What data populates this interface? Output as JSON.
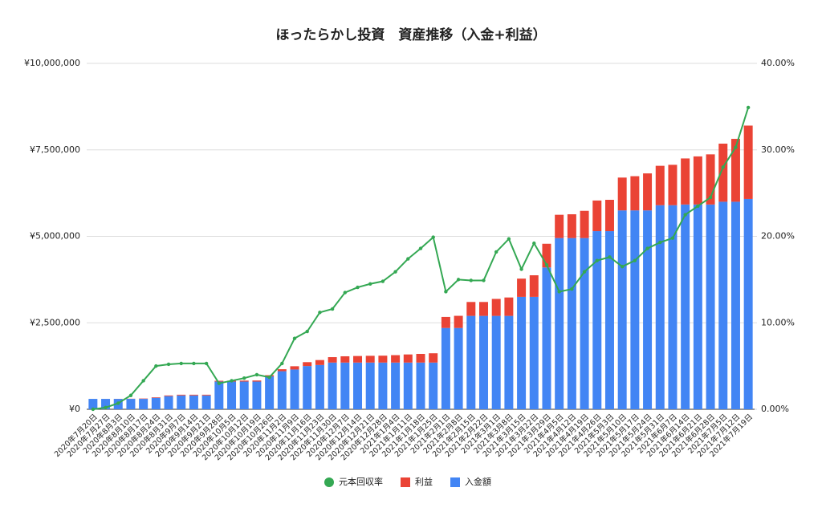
{
  "chart_data": {
    "type": "bar",
    "stacked": true,
    "title": "ほったらかし投資　資産推移（入金+利益）",
    "categories": [
      "2020年7月20日",
      "2020年7月27日",
      "2020年8月3日",
      "2020年8月10日",
      "2020年8月17日",
      "2020年8月24日",
      "2020年8月31日",
      "2020年9月7日",
      "2020年9月14日",
      "2020年9月21日",
      "2020年9月28日",
      "2020年10月5日",
      "2020年10月12日",
      "2020年10月19日",
      "2020年10月26日",
      "2020年11月2日",
      "2020年11月9日",
      "2020年11月16日",
      "2020年11月23日",
      "2020年11月30日",
      "2020年12月7日",
      "2020年12月14日",
      "2020年12月21日",
      "2020年12月28日",
      "2021年1月4日",
      "2021年1月11日",
      "2021年1月18日",
      "2021年1月25日",
      "2021年2月1日",
      "2021年2月8日",
      "2021年2月15日",
      "2021年2月22日",
      "2021年3月1日",
      "2021年3月8日",
      "2021年3月15日",
      "2021年3月22日",
      "2021年3月29日",
      "2021年4月5日",
      "2021年4月12日",
      "2021年4月19日",
      "2021年4月26日",
      "2021年5月3日",
      "2021年5月10日",
      "2021年5月17日",
      "2021年5月24日",
      "2021年5月31日",
      "2021年6月7日",
      "2021年6月14日",
      "2021年6月21日",
      "2021年6月28日",
      "2021年7月5日",
      "2021年7月12日",
      "2021年7月19日"
    ],
    "series": [
      {
        "name": "入金額",
        "color": "#4285f4",
        "values": [
          300000,
          300000,
          300000,
          300000,
          300000,
          330000,
          380000,
          400000,
          400000,
          400000,
          800000,
          800000,
          800000,
          800000,
          950000,
          1100000,
          1150000,
          1250000,
          1280000,
          1350000,
          1350000,
          1350000,
          1350000,
          1350000,
          1350000,
          1350000,
          1350000,
          1350000,
          2350000,
          2350000,
          2700000,
          2700000,
          2700000,
          2700000,
          3250000,
          3250000,
          4100000,
          4950000,
          4950000,
          4950000,
          5150000,
          5150000,
          5750000,
          5750000,
          5750000,
          5900000,
          5900000,
          5920000,
          5920000,
          5920000,
          6000000,
          6000000,
          6080000
        ]
      },
      {
        "name": "利益",
        "color": "#ea4335",
        "values": [
          0,
          600,
          2000,
          5000,
          10000,
          16500,
          20000,
          21000,
          21000,
          21000,
          24000,
          26000,
          29000,
          32000,
          35000,
          58000,
          94000,
          112000,
          143000,
          157000,
          182000,
          190000,
          196000,
          200000,
          215000,
          235000,
          251000,
          269000,
          320000,
          352000,
          402000,
          402000,
          491000,
          532000,
          527000,
          624000,
          685000,
          673000,
          688000,
          787000,
          886000,
          906000,
          949000,
          989000,
          1070000,
          1139000,
          1168000,
          1332000,
          1391000,
          1450000,
          1680000,
          1818000,
          2122000
        ]
      },
      {
        "name": "元本回収率",
        "color": "#34a853",
        "type": "line",
        "axis": "y2",
        "values": [
          0,
          0.2,
          0.7,
          1.6,
          3.3,
          5.0,
          5.2,
          5.3,
          5.3,
          5.3,
          3.0,
          3.3,
          3.6,
          4.0,
          3.7,
          5.3,
          8.2,
          9.0,
          11.2,
          11.6,
          13.5,
          14.1,
          14.5,
          14.8,
          15.9,
          17.4,
          18.6,
          19.9,
          13.6,
          15.0,
          14.9,
          14.9,
          18.2,
          19.7,
          16.2,
          19.2,
          16.7,
          13.6,
          13.9,
          15.9,
          17.2,
          17.6,
          16.5,
          17.2,
          18.6,
          19.3,
          19.8,
          22.5,
          23.5,
          24.5,
          28.0,
          30.3,
          34.9
        ]
      }
    ],
    "ylim": [
      0,
      10000000
    ],
    "yticks": [
      {
        "value": 0,
        "label": "¥0"
      },
      {
        "value": 2500000,
        "label": "¥2,500,000"
      },
      {
        "value": 5000000,
        "label": "¥5,000,000"
      },
      {
        "value": 7500000,
        "label": "¥7,500,000"
      },
      {
        "value": 10000000,
        "label": "¥10,000,000"
      }
    ],
    "y2lim": [
      0,
      40
    ],
    "y2ticks": [
      {
        "value": 0,
        "label": "0.00%"
      },
      {
        "value": 10,
        "label": "10.00%"
      },
      {
        "value": 20,
        "label": "20.00%"
      },
      {
        "value": 30,
        "label": "30.00%"
      },
      {
        "value": 40,
        "label": "40.00%"
      }
    ],
    "grid": true,
    "legend": "bottom"
  }
}
